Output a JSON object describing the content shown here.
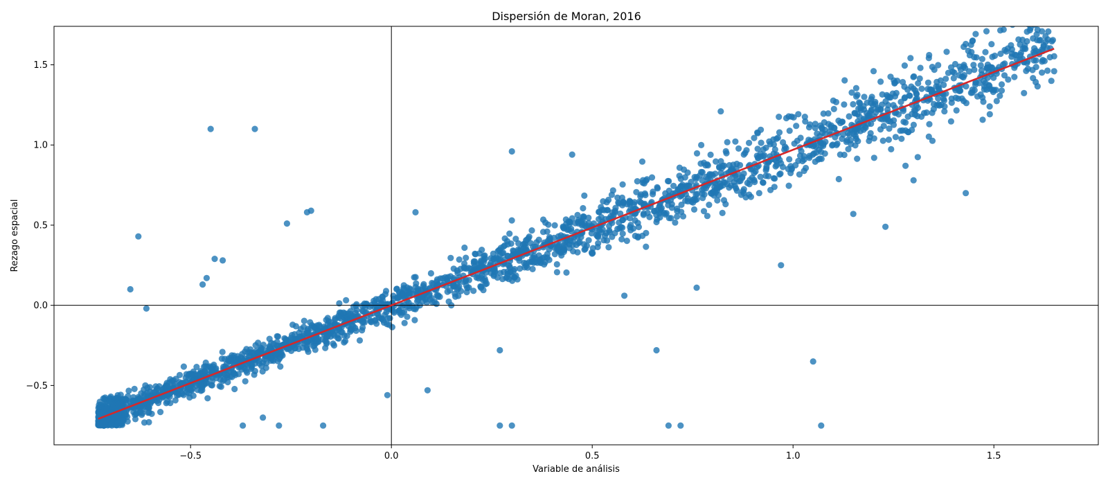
{
  "chart_data": {
    "type": "scatter",
    "title": "Dispersión de Moran, 2016",
    "xlabel": "Variable de análisis",
    "ylabel": "Rezago espacial",
    "xlim": [
      -0.84,
      1.76
    ],
    "ylim": [
      -0.87,
      1.74
    ],
    "xticks": [
      -0.5,
      0.0,
      0.5,
      1.0,
      1.5
    ],
    "xtick_labels": [
      "−0.5",
      "0.0",
      "0.5",
      "1.0",
      "1.5"
    ],
    "yticks": [
      -0.5,
      0.0,
      0.5,
      1.0,
      1.5
    ],
    "ytick_labels": [
      "−0.5",
      "0.0",
      "0.5",
      "1.0",
      "1.5"
    ],
    "grid": false,
    "legend": "none",
    "reference_lines": {
      "x": 0,
      "y": 0,
      "color": "#000000"
    },
    "fit_line": {
      "slope": 0.97,
      "intercept": 0.0,
      "x": [
        -0.73,
        1.65
      ],
      "color": "#d62728"
    },
    "scatter_color": "#1f77b4",
    "point_model": {
      "n_points": 2600,
      "x_min": -0.73,
      "x_max": 1.65,
      "slope": 0.97,
      "intercept": 0.0,
      "y_floor": -0.75
    },
    "outliers": [
      [
        -0.45,
        1.1
      ],
      [
        -0.34,
        1.1
      ],
      [
        -0.63,
        0.43
      ],
      [
        -0.26,
        0.51
      ],
      [
        -0.2,
        0.59
      ],
      [
        -0.21,
        0.58
      ],
      [
        -0.65,
        0.1
      ],
      [
        -0.61,
        -0.02
      ],
      [
        -0.44,
        0.29
      ],
      [
        -0.42,
        0.28
      ],
      [
        -0.46,
        0.17
      ],
      [
        -0.47,
        0.13
      ],
      [
        0.27,
        -0.28
      ],
      [
        0.66,
        -0.28
      ],
      [
        1.05,
        -0.35
      ],
      [
        -0.01,
        -0.56
      ],
      [
        0.09,
        -0.53
      ],
      [
        0.27,
        -0.75
      ],
      [
        0.3,
        -0.75
      ],
      [
        0.69,
        -0.75
      ],
      [
        0.72,
        -0.75
      ],
      [
        1.07,
        -0.75
      ],
      [
        1.43,
        0.7
      ],
      [
        1.43,
        1.63
      ],
      [
        1.44,
        1.56
      ],
      [
        1.62,
        1.52
      ],
      [
        1.65,
        1.46
      ],
      [
        1.49,
        1.35
      ],
      [
        1.47,
        1.44
      ],
      [
        0.97,
        0.25
      ],
      [
        0.82,
        1.21
      ],
      [
        0.3,
        0.96
      ],
      [
        0.45,
        0.94
      ],
      [
        1.23,
        0.49
      ],
      [
        1.15,
        0.57
      ],
      [
        1.28,
        0.87
      ],
      [
        1.3,
        0.78
      ],
      [
        0.58,
        0.06
      ],
      [
        0.76,
        0.11
      ],
      [
        -0.37,
        -0.75
      ],
      [
        -0.17,
        -0.75
      ],
      [
        -0.28,
        -0.75
      ],
      [
        -0.32,
        -0.7
      ],
      [
        0.03,
        0.07
      ],
      [
        0.06,
        0.58
      ]
    ]
  }
}
